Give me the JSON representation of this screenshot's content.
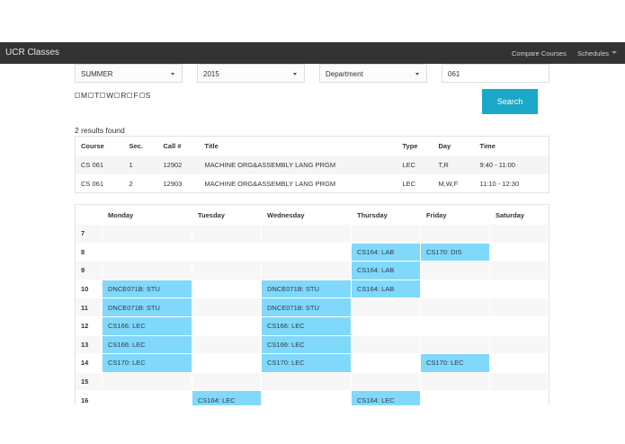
{
  "navbar": {
    "brand": "UCR Classes",
    "links": [
      {
        "label": "Compare Courses"
      },
      {
        "label": "Schedules",
        "has_dropdown": true
      }
    ]
  },
  "filters": {
    "term": "SUMMER",
    "year": "2015",
    "department": "Department",
    "course_number": "061",
    "days": [
      {
        "label": "M",
        "checked": false
      },
      {
        "label": "T",
        "checked": false
      },
      {
        "label": "W",
        "checked": false
      },
      {
        "label": "R",
        "checked": false
      },
      {
        "label": "F",
        "checked": false
      },
      {
        "label": "S",
        "checked": false
      }
    ],
    "search_label": "Search"
  },
  "results": {
    "count_text": "2 results found",
    "columns": [
      "Course",
      "Sec.",
      "Call #",
      "Title",
      "Type",
      "Day",
      "Time"
    ],
    "rows": [
      [
        "CS 061",
        "1",
        "12902",
        "MACHINE ORG&ASSEMBLY LANG PRGM",
        "LEC",
        "T,R",
        "9:40 - 11:00"
      ],
      [
        "CS 061",
        "2",
        "12903",
        "MACHINE ORG&ASSEMBLY LANG PRGM",
        "LEC",
        "M,W,F",
        "11:10 - 12:30"
      ]
    ]
  },
  "calendar": {
    "days": [
      "",
      "Monday",
      "Tuesday",
      "Wednesday",
      "Thursday",
      "Friday",
      "Saturday"
    ],
    "event_color": "#80d8fb",
    "rows": [
      {
        "hour": "7",
        "cells": [
          "",
          "",
          "",
          "",
          "",
          ""
        ]
      },
      {
        "hour": "8",
        "cells": [
          "",
          "",
          "",
          "CS164: LAB",
          "CS170: DIS",
          ""
        ]
      },
      {
        "hour": "9",
        "cells": [
          "",
          "",
          "",
          "CS164: LAB",
          "",
          ""
        ]
      },
      {
        "hour": "10",
        "cells": [
          "DNCE071B: STU",
          "",
          "DNCE071B: STU",
          "CS164: LAB",
          "",
          ""
        ]
      },
      {
        "hour": "11",
        "cells": [
          "DNCE071B: STU",
          "",
          "DNCE071B: STU",
          "",
          "",
          ""
        ]
      },
      {
        "hour": "12",
        "cells": [
          "CS166: LEC",
          "",
          "CS166: LEC",
          "",
          "",
          ""
        ]
      },
      {
        "hour": "13",
        "cells": [
          "CS166: LEC",
          "",
          "CS166: LEC",
          "",
          "",
          ""
        ]
      },
      {
        "hour": "14",
        "cells": [
          "CS170: LEC",
          "",
          "CS170: LEC",
          "",
          "CS170: LEC",
          ""
        ]
      },
      {
        "hour": "15",
        "cells": [
          "",
          "",
          "",
          "",
          "",
          ""
        ]
      },
      {
        "hour": "16",
        "cells": [
          "",
          "CS164: LEC",
          "",
          "CS164: LEC",
          "",
          ""
        ]
      }
    ]
  }
}
